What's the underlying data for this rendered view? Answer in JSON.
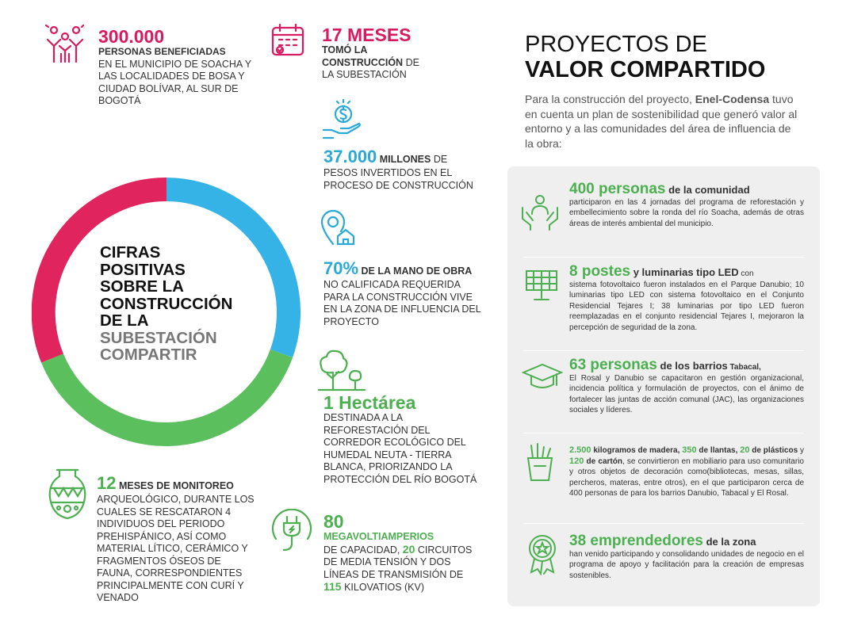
{
  "header": {
    "title_line1": "PROYECTOS DE",
    "title_line2": "VALOR COMPARTIDO",
    "intro_before": "Para la construcción del proyecto, ",
    "intro_brand": "Enel-Codensa",
    "intro_after": " tuvo en cuenta un plan de sostenibilidad que generó valor al entorno y a las comunidades del área de influencia de la obra:"
  },
  "ring": {
    "line1": "CIFRAS",
    "line2": "POSITIVAS",
    "line3": "SOBRE LA",
    "line4": "CONSTRUCCIÓN",
    "line5": "DE LA",
    "line6": "SUBESTACIÓN",
    "line7": "COMPARTIR",
    "colors": {
      "pink": "#e0245e",
      "blue": "#35b3e6",
      "green": "#5cbf5e"
    }
  },
  "stats": {
    "personas": {
      "number": "300.000",
      "label": "PERSONAS BENEFICIADAS",
      "text": "EN EL MUNICIPIO DE SOACHA Y LAS LOCALIDADES DE BOSA Y CIUDAD BOLÍVAR, AL SUR DE BOGOTÁ",
      "icon": "community-hands-icon"
    },
    "meses": {
      "number": "17 MESES",
      "bold": "TOMÓ LA CONSTRUCCIÓN",
      "text1": " DE",
      "text2": "LA SUBESTACIÓN",
      "icon": "calendar-icon"
    },
    "millones": {
      "number": "37.000",
      "bold": " MILLONES",
      "text1": " DE",
      "text2": "PESOS INVERTIDOS EN EL PROCESO DE CONSTRUCCIÓN",
      "icon": "money-hand-icon"
    },
    "mano_obra": {
      "number": "70%",
      "bold": " DE LA MANO DE OBRA",
      "text": "NO CALIFICADA REQUERIDA PARA LA CONSTRUCCIÓN VIVE EN LA ZONA DE INFLUENCIA DEL PROYECTO",
      "icon": "location-home-icon"
    },
    "hectarea": {
      "number": "1 Hectárea",
      "text": "DESTINADA A LA REFORESTACIÓN DEL CORREDOR ECOLÓGICO DEL HUMEDAL NEUTA - TIERRA BLANCA, PRIORIZANDO LA PROTECCIÓN DEL RÍO BOGOTÁ",
      "icon": "trees-icon"
    },
    "monitoreo": {
      "number": "12",
      "bold": " MESES DE MONITOREO",
      "text": "ARQUEOLÓGICO, DURANTE LOS CUALES SE RESCATARON 4 INDIVIDUOS DEL PERIODO PREHISPÁNICO, ASÍ COMO MATERIAL LÍTICO, CERÁMICO Y FRAGMENTOS ÓSEOS DE FAUNA, CORRESPONDIENTES PRINCIPALMENTE CON CURÍ Y VENADO",
      "icon": "vase-icon"
    },
    "megavoltio": {
      "number": "80",
      "green_label": "MEGAVOLTIAMPERIOS",
      "t1": "DE CAPACIDAD, ",
      "n2": "20",
      "t2": " CIRCUITOS DE MEDIA TENSIÓN Y DOS LÍNEAS DE TRANSMISIÓN DE",
      "n3": "115",
      "t3": " KILOVATIOS (KV)",
      "icon": "plug-icon"
    }
  },
  "projects": [
    {
      "highlight": "400 personas",
      "sub": " de la comunidad",
      "text": "participaron en las 4 jornadas del programa de reforesta­ción y embellecimiento sobre la ronda del río Soacha, además de otras áreas de interés ambiental del munici­pio.",
      "icon": "people-hands-icon"
    },
    {
      "highlight": "8 postes",
      "sub": " y luminarias tipo LED",
      "sub2": " con",
      "text": "sistema fotovoltaico fueron instalados en el Parque Danu­bio; 10 luminarias tipo LED con sistema fotovoltaico en el Conjunto Residencial Tejares I; 38 luminarias por tipo LED fueron reemplazadas en el conjunto residencial Tejares I, mejoraron la percepción de seguridad de la zona.",
      "icon": "solar-panel-icon"
    },
    {
      "highlight": "63 personas",
      "sub": " de los barrios",
      "sub2": " Tabacal,",
      "text": "El Rosal y Danubio se capacitaron en gestión organizacional, incidencia política y formulación de proyectos, con el ánimo de fortalecer las juntas de acción comunal (JAC), las organizaciones sociales y líderes.",
      "icon": "graduation-cap-icon"
    },
    {
      "n1": "2.500",
      "t1": " kilogramos de madera, ",
      "n2": "350",
      "t2": " de llantas, ",
      "n3": "20",
      "t3": " de plásticos",
      "t4": " y ",
      "n4": "120",
      "t5": " de cartón",
      "t6": ", se convirtieron en mobiliario para uso comunitario y otros objetos de decoración como(bibliotecas, mesas, sillas, percheros, materas, entre otros), en el que participaron cerca de 400 personas de para los barrios Danubio, Tabacal y El Rosal.",
      "icon": "recycle-bin-icon"
    },
    {
      "highlight": "38 emprendedores",
      "sub": " de la zona",
      "text": "han venido participando y consolidando unidades de negocio en el programa de apoyo y facilitación para la creación de empresas sostenibles.",
      "icon": "badge-star-icon"
    }
  ]
}
